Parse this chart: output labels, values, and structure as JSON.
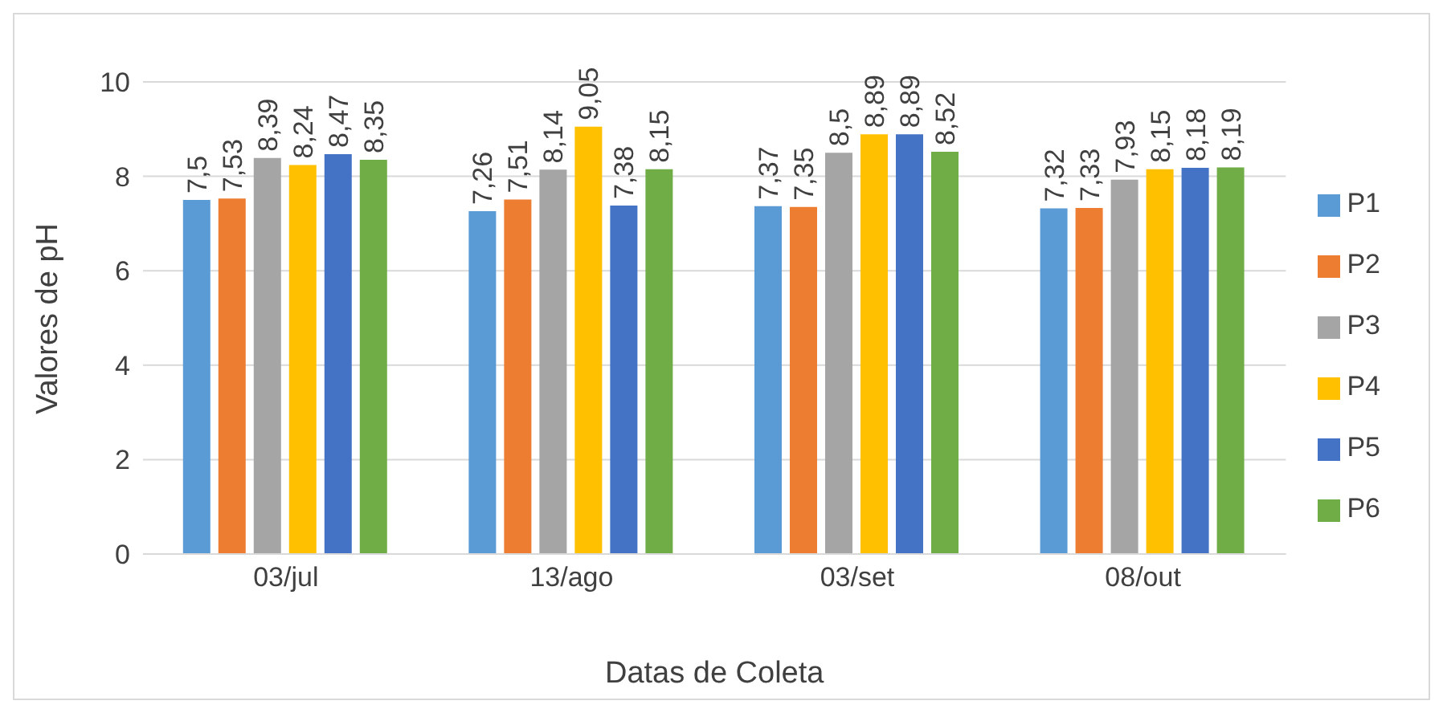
{
  "chart_data": {
    "type": "bar",
    "xlabel": "Datas de Coleta",
    "ylabel": "Valores de pH",
    "categories": [
      "03/jul",
      "13/ago",
      "03/set",
      "08/out"
    ],
    "series": [
      {
        "name": "P1",
        "color": "#5b9bd5",
        "values": [
          7.5,
          7.26,
          7.37,
          7.32
        ],
        "value_labels": [
          "7,5",
          "7,26",
          "7,37",
          "7,32"
        ]
      },
      {
        "name": "P2",
        "color": "#ed7d31",
        "values": [
          7.53,
          7.51,
          7.35,
          7.33
        ],
        "value_labels": [
          "7,53",
          "7,51",
          "7,35",
          "7,33"
        ]
      },
      {
        "name": "P3",
        "color": "#a5a5a5",
        "values": [
          8.39,
          8.14,
          8.5,
          7.93
        ],
        "value_labels": [
          "8,39",
          "8,14",
          "8,5",
          "7,93"
        ]
      },
      {
        "name": "P4",
        "color": "#ffc000",
        "values": [
          8.24,
          9.05,
          8.89,
          8.15
        ],
        "value_labels": [
          "8,24",
          "9,05",
          "8,89",
          "8,15"
        ]
      },
      {
        "name": "P5",
        "color": "#4472c4",
        "values": [
          8.47,
          7.38,
          8.89,
          8.18
        ],
        "value_labels": [
          "8,47",
          "7,38",
          "8,89",
          "8,18"
        ]
      },
      {
        "name": "P6",
        "color": "#70ad47",
        "values": [
          8.35,
          8.15,
          8.52,
          8.19
        ],
        "value_labels": [
          "8,35",
          "8,15",
          "8,52",
          "8,19"
        ]
      }
    ],
    "ylim": [
      0,
      10
    ],
    "yticks": [
      0,
      2,
      4,
      6,
      8,
      10
    ],
    "grid": "y",
    "legend": "right"
  }
}
